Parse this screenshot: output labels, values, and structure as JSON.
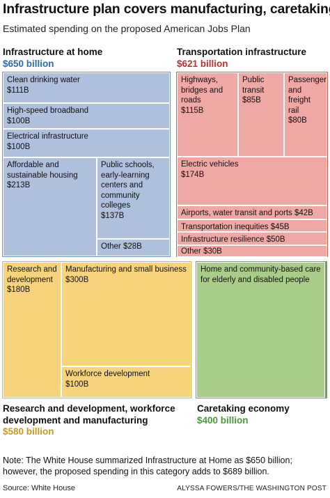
{
  "title": "Infrastructure plan covers manufacturing, caretaking",
  "subtitle": "Estimated spending on the proposed American Jobs Plan",
  "colors": {
    "home_fill": "#aec0dc",
    "home_frame": "#6b8fc6",
    "home_amount": "#2b6cb0",
    "transport_fill": "#f0a8a4",
    "transport_frame": "#d85a55",
    "transport_amount": "#c0302e",
    "rd_fill": "#f7d37c",
    "rd_frame": "#e8b13a",
    "rd_amount": "#c79a18",
    "care_fill": "#a8cc8a",
    "care_frame": "#6aa84f",
    "care_amount": "#4a9a3a"
  },
  "chart_data": {
    "type": "treemap",
    "unit": "billion USD",
    "groups": [
      {
        "key": "home",
        "name": "Infrastructure at home",
        "total_label": "$650 billion",
        "total": 650,
        "items": [
          {
            "label": "Clean drinking water",
            "value": 111,
            "value_label": "$111B"
          },
          {
            "label": "High-speed broadband",
            "value": 100,
            "value_label": "$100B"
          },
          {
            "label": "Electrical infrastructure",
            "value": 100,
            "value_label": "$100B"
          },
          {
            "label": "Affordable and sustainable housing",
            "value": 213,
            "value_label": "$213B"
          },
          {
            "label": "Public schools, early-learning centers and community colleges",
            "value": 137,
            "value_label": "$137B"
          },
          {
            "label": "Other",
            "value": 28,
            "value_label": "$28B"
          }
        ]
      },
      {
        "key": "transport",
        "name": "Transportation infrastructure",
        "total_label": "$621 billion",
        "total": 621,
        "items": [
          {
            "label": "Highways, bridges and roads",
            "value": 115,
            "value_label": "$115B"
          },
          {
            "label": "Public transit",
            "value": 85,
            "value_label": "$85B"
          },
          {
            "label": "Passenger and freight rail",
            "value": 80,
            "value_label": "$80B"
          },
          {
            "label": "Electric vehicles",
            "value": 174,
            "value_label": "$174B"
          },
          {
            "label": "Airports, water transit and ports",
            "value": 42,
            "value_label": "$42B"
          },
          {
            "label": "Transportation inequities",
            "value": 45,
            "value_label": "$45B"
          },
          {
            "label": "Infrastructure resilience",
            "value": 50,
            "value_label": "$50B"
          },
          {
            "label": "Other",
            "value": 30,
            "value_label": "$30B"
          }
        ]
      },
      {
        "key": "rd",
        "name": "Research and development, workforce development and manufacturing",
        "name_line1": "Research and development, workforce",
        "name_line2": "development and manufacturing",
        "total_label": "$580 billion",
        "total": 580,
        "items": [
          {
            "label": "Research and development",
            "value": 180,
            "value_label": "$180B"
          },
          {
            "label": "Manufacturing and small business",
            "value": 300,
            "value_label": "$300B"
          },
          {
            "label": "Workforce development",
            "value": 100,
            "value_label": "$100B"
          }
        ]
      },
      {
        "key": "care",
        "name": "Caretaking economy",
        "total_label": "$400 billion",
        "total": 400,
        "items": [
          {
            "label": "Home and community-based care for elderly and disabled people",
            "value": 400,
            "value_label": "$400B"
          }
        ]
      }
    ]
  },
  "note": "Note: The White House summarized Infrastructure at Home as $650 billion; however, the proposed spending in this category adds to $689 billion.",
  "source": "Source: White House",
  "credit": "ALYSSA FOWERS/THE WASHINGTON POST"
}
